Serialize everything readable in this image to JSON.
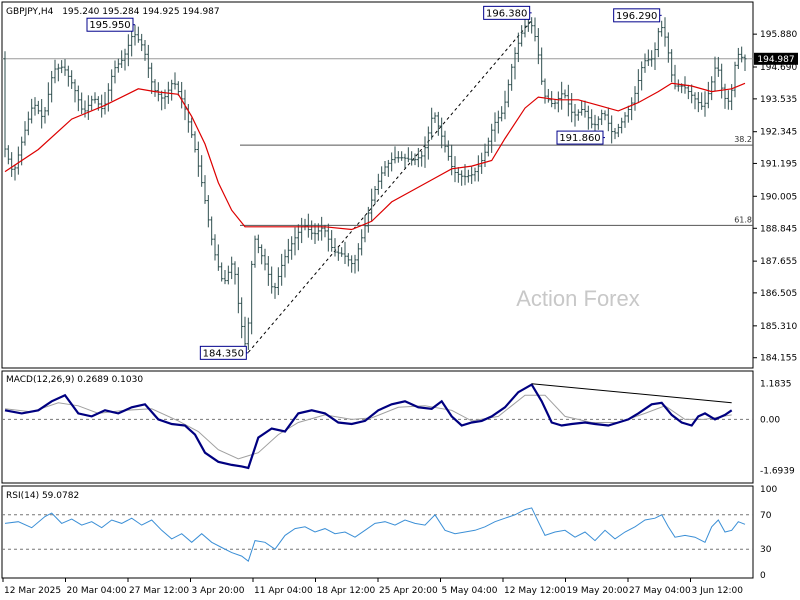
{
  "header": {
    "symbol": "GBPJPY,H4",
    "ohlc": "195.240 195.284 194.925 194.987"
  },
  "watermark": "Action Forex",
  "current_price_label": "194.987",
  "colors": {
    "bar": "#2f4f4f",
    "ma": "#dd0000",
    "macd": "#000080",
    "signal": "#a0a0a0",
    "rsi": "#3b8fd6",
    "annotation_box": "#00008b",
    "grid": "#7f7f7f"
  },
  "chart_data": [
    {
      "type": "ohlc",
      "panel": "price",
      "price_axis_labels": [
        "195.880",
        "194.690",
        "193.535",
        "192.345",
        "191.195",
        "190.005",
        "188.845",
        "187.655",
        "186.505",
        "185.310",
        "184.155"
      ],
      "ylim": [
        184.0,
        196.9
      ],
      "x_labels": [
        "12 Mar 2025",
        "20 Mar 04:00",
        "27 Mar 12:00",
        "3 Apr 20:00",
        "11 Apr 04:00",
        "18 Apr 12:00",
        "25 Apr 20:00",
        "5 May 04:00",
        "12 May 12:00",
        "19 May 20:00",
        "27 May 04:00",
        "3 Jun 12:00"
      ],
      "price_path": [
        [
          0,
          191.9
        ],
        [
          3,
          190.8
        ],
        [
          6,
          192.2
        ],
        [
          9,
          193.4
        ],
        [
          12,
          192.8
        ],
        [
          15,
          194.6
        ],
        [
          18,
          194.7
        ],
        [
          21,
          194.0
        ],
        [
          24,
          193.0
        ],
        [
          27,
          193.6
        ],
        [
          30,
          193.1
        ],
        [
          33,
          194.6
        ],
        [
          36,
          195.0
        ],
        [
          39,
          195.95
        ],
        [
          42,
          195.4
        ],
        [
          45,
          193.9
        ],
        [
          48,
          193.5
        ],
        [
          51,
          194.2
        ],
        [
          54,
          193.4
        ],
        [
          57,
          192.0
        ],
        [
          60,
          190.2
        ],
        [
          63,
          188.1
        ],
        [
          66,
          186.8
        ],
        [
          69,
          187.7
        ],
        [
          71,
          185.6
        ],
        [
          73,
          184.35
        ],
        [
          75,
          188.6
        ],
        [
          77,
          188.0
        ],
        [
          79,
          187.4
        ],
        [
          81,
          186.5
        ],
        [
          84,
          187.7
        ],
        [
          87,
          188.4
        ],
        [
          90,
          189.0
        ],
        [
          93,
          188.6
        ],
        [
          96,
          188.9
        ],
        [
          99,
          188.0
        ],
        [
          102,
          187.9
        ],
        [
          105,
          187.5
        ],
        [
          108,
          188.7
        ],
        [
          111,
          190.1
        ],
        [
          114,
          191.0
        ],
        [
          117,
          191.4
        ],
        [
          120,
          191.4
        ],
        [
          123,
          191.3
        ],
        [
          126,
          191.5
        ],
        [
          129,
          193.1
        ],
        [
          132,
          192.0
        ],
        [
          135,
          190.9
        ],
        [
          138,
          190.7
        ],
        [
          141,
          190.8
        ],
        [
          144,
          191.4
        ],
        [
          147,
          192.6
        ],
        [
          150,
          193.1
        ],
        [
          153,
          195.0
        ],
        [
          156,
          196.1
        ],
        [
          158,
          196.38
        ],
        [
          160,
          195.6
        ],
        [
          162,
          193.7
        ],
        [
          165,
          193.3
        ],
        [
          168,
          193.8
        ],
        [
          171,
          192.9
        ],
        [
          174,
          193.2
        ],
        [
          177,
          192.5
        ],
        [
          180,
          193.1
        ],
        [
          183,
          192.2
        ],
        [
          186,
          192.8
        ],
        [
          189,
          193.5
        ],
        [
          192,
          194.9
        ],
        [
          195,
          195.0
        ],
        [
          197,
          196.29
        ],
        [
          199,
          195.6
        ],
        [
          201,
          194.0
        ],
        [
          204,
          194.0
        ],
        [
          207,
          193.6
        ],
        [
          210,
          193.2
        ],
        [
          212,
          193.9
        ],
        [
          214,
          194.9
        ],
        [
          216,
          193.6
        ],
        [
          218,
          193.4
        ],
        [
          220,
          195.2
        ],
        [
          222,
          194.987
        ]
      ],
      "moving_average_path": [
        [
          0,
          190.9
        ],
        [
          10,
          191.7
        ],
        [
          20,
          192.8
        ],
        [
          30,
          193.3
        ],
        [
          40,
          193.9
        ],
        [
          45,
          193.8
        ],
        [
          52,
          193.7
        ],
        [
          56,
          192.9
        ],
        [
          60,
          191.9
        ],
        [
          64,
          190.5
        ],
        [
          68,
          189.5
        ],
        [
          72,
          188.9
        ],
        [
          78,
          188.9
        ],
        [
          86,
          188.9
        ],
        [
          96,
          188.9
        ],
        [
          104,
          188.8
        ],
        [
          110,
          189.1
        ],
        [
          116,
          189.8
        ],
        [
          122,
          190.2
        ],
        [
          128,
          190.6
        ],
        [
          134,
          191.0
        ],
        [
          140,
          191.1
        ],
        [
          146,
          191.3
        ],
        [
          150,
          192.1
        ],
        [
          156,
          193.2
        ],
        [
          160,
          193.6
        ],
        [
          166,
          193.5
        ],
        [
          172,
          193.5
        ],
        [
          178,
          193.3
        ],
        [
          184,
          193.1
        ],
        [
          190,
          193.4
        ],
        [
          196,
          193.8
        ],
        [
          200,
          194.1
        ],
        [
          206,
          194.0
        ],
        [
          212,
          193.8
        ],
        [
          218,
          193.9
        ],
        [
          222,
          194.1
        ]
      ],
      "annotations": [
        {
          "label": "195.950",
          "bar": 39,
          "price": 195.95,
          "pos": "left"
        },
        {
          "label": "184.350",
          "bar": 73,
          "price": 184.35,
          "pos": "left"
        },
        {
          "label": "196.380",
          "bar": 158,
          "price": 196.38,
          "pos": "left"
        },
        {
          "label": "196.290",
          "bar": 197,
          "price": 196.29,
          "pos": "left"
        },
        {
          "label": "191.860",
          "bar": 180,
          "price": 191.86,
          "pos": "left"
        }
      ],
      "fibonacci": {
        "levels": [
          {
            "label": "38.2",
            "price": 191.86
          },
          {
            "label": "61.8",
            "price": 188.95
          }
        ],
        "swing_low": {
          "bar": 73,
          "price": 184.35
        },
        "swing_high": {
          "bar": 158,
          "price": 196.38
        }
      },
      "horizontal_line": {
        "price": 194.987
      }
    },
    {
      "type": "line",
      "panel": "macd",
      "title": "MACD(12,26,9) 0.2689 0.1030",
      "axis_labels": [
        "1.1835",
        "0.00",
        "-1.6939"
      ],
      "ylim": [
        -2.0,
        1.5
      ],
      "macd_path": [
        [
          0,
          0.3
        ],
        [
          5,
          0.2
        ],
        [
          10,
          0.3
        ],
        [
          14,
          0.6
        ],
        [
          18,
          0.8
        ],
        [
          22,
          0.2
        ],
        [
          26,
          0.1
        ],
        [
          30,
          0.3
        ],
        [
          34,
          0.2
        ],
        [
          38,
          0.4
        ],
        [
          42,
          0.5
        ],
        [
          46,
          0.0
        ],
        [
          50,
          -0.15
        ],
        [
          54,
          -0.2
        ],
        [
          57,
          -0.5
        ],
        [
          60,
          -1.1
        ],
        [
          64,
          -1.4
        ],
        [
          68,
          -1.5
        ],
        [
          71,
          -1.55
        ],
        [
          73,
          -1.6
        ],
        [
          76,
          -0.6
        ],
        [
          80,
          -0.3
        ],
        [
          84,
          -0.4
        ],
        [
          88,
          0.2
        ],
        [
          92,
          0.3
        ],
        [
          96,
          0.2
        ],
        [
          100,
          -0.1
        ],
        [
          104,
          -0.15
        ],
        [
          108,
          -0.05
        ],
        [
          112,
          0.3
        ],
        [
          116,
          0.5
        ],
        [
          120,
          0.6
        ],
        [
          124,
          0.4
        ],
        [
          128,
          0.35
        ],
        [
          131,
          0.6
        ],
        [
          134,
          0.1
        ],
        [
          137,
          -0.2
        ],
        [
          140,
          -0.1
        ],
        [
          143,
          -0.05
        ],
        [
          146,
          0.1
        ],
        [
          150,
          0.4
        ],
        [
          154,
          0.9
        ],
        [
          158,
          1.15
        ],
        [
          161,
          0.6
        ],
        [
          164,
          -0.1
        ],
        [
          167,
          -0.2
        ],
        [
          170,
          -0.15
        ],
        [
          174,
          -0.1
        ],
        [
          177,
          -0.15
        ],
        [
          181,
          -0.2
        ],
        [
          184,
          -0.1
        ],
        [
          187,
          0.0
        ],
        [
          190,
          0.2
        ],
        [
          194,
          0.5
        ],
        [
          197,
          0.55
        ],
        [
          200,
          0.15
        ],
        [
          203,
          -0.1
        ],
        [
          206,
          -0.2
        ],
        [
          208,
          0.1
        ],
        [
          210,
          0.2
        ],
        [
          213,
          0.0
        ],
        [
          216,
          0.15
        ],
        [
          218,
          0.3
        ]
      ],
      "signal_path": [
        [
          0,
          0.35
        ],
        [
          8,
          0.25
        ],
        [
          16,
          0.55
        ],
        [
          22,
          0.45
        ],
        [
          28,
          0.2
        ],
        [
          36,
          0.3
        ],
        [
          44,
          0.35
        ],
        [
          52,
          -0.05
        ],
        [
          58,
          -0.4
        ],
        [
          64,
          -1.0
        ],
        [
          70,
          -1.3
        ],
        [
          76,
          -1.1
        ],
        [
          82,
          -0.5
        ],
        [
          88,
          -0.1
        ],
        [
          96,
          0.15
        ],
        [
          104,
          0.0
        ],
        [
          110,
          0.05
        ],
        [
          118,
          0.4
        ],
        [
          126,
          0.45
        ],
        [
          134,
          0.3
        ],
        [
          140,
          -0.05
        ],
        [
          148,
          0.1
        ],
        [
          156,
          0.8
        ],
        [
          162,
          0.8
        ],
        [
          168,
          0.1
        ],
        [
          176,
          -0.1
        ],
        [
          184,
          -0.1
        ],
        [
          192,
          0.2
        ],
        [
          198,
          0.45
        ],
        [
          204,
          0.0
        ],
        [
          210,
          0.0
        ],
        [
          218,
          0.15
        ]
      ],
      "trendline": {
        "from": {
          "bar": 158,
          "value": 1.18
        },
        "to": {
          "bar": 218,
          "value": 0.55
        }
      }
    },
    {
      "type": "line",
      "panel": "rsi",
      "title": "RSI(14) 59.0782",
      "axis_labels": [
        "100",
        "70",
        "30",
        "0"
      ],
      "ylim": [
        0,
        100
      ],
      "rsi_path": [
        [
          0,
          60
        ],
        [
          4,
          62
        ],
        [
          8,
          55
        ],
        [
          12,
          68
        ],
        [
          14,
          72
        ],
        [
          17,
          60
        ],
        [
          20,
          65
        ],
        [
          23,
          58
        ],
        [
          26,
          62
        ],
        [
          29,
          55
        ],
        [
          32,
          64
        ],
        [
          35,
          60
        ],
        [
          38,
          66
        ],
        [
          41,
          58
        ],
        [
          44,
          64
        ],
        [
          47,
          52
        ],
        [
          50,
          42
        ],
        [
          53,
          48
        ],
        [
          56,
          38
        ],
        [
          59,
          48
        ],
        [
          62,
          38
        ],
        [
          65,
          32
        ],
        [
          68,
          26
        ],
        [
          71,
          22
        ],
        [
          73,
          16
        ],
        [
          75,
          40
        ],
        [
          78,
          38
        ],
        [
          81,
          30
        ],
        [
          84,
          46
        ],
        [
          87,
          54
        ],
        [
          90,
          56
        ],
        [
          93,
          50
        ],
        [
          96,
          54
        ],
        [
          99,
          48
        ],
        [
          102,
          50
        ],
        [
          105,
          44
        ],
        [
          108,
          52
        ],
        [
          111,
          60
        ],
        [
          114,
          62
        ],
        [
          117,
          58
        ],
        [
          120,
          64
        ],
        [
          123,
          60
        ],
        [
          126,
          58
        ],
        [
          129,
          70
        ],
        [
          132,
          52
        ],
        [
          135,
          48
        ],
        [
          138,
          50
        ],
        [
          141,
          52
        ],
        [
          144,
          56
        ],
        [
          147,
          62
        ],
        [
          150,
          66
        ],
        [
          153,
          70
        ],
        [
          156,
          76
        ],
        [
          158,
          78
        ],
        [
          160,
          62
        ],
        [
          162,
          46
        ],
        [
          165,
          50
        ],
        [
          168,
          52
        ],
        [
          171,
          44
        ],
        [
          174,
          50
        ],
        [
          177,
          40
        ],
        [
          180,
          52
        ],
        [
          183,
          42
        ],
        [
          186,
          50
        ],
        [
          189,
          56
        ],
        [
          192,
          64
        ],
        [
          195,
          66
        ],
        [
          197,
          70
        ],
        [
          199,
          56
        ],
        [
          201,
          44
        ],
        [
          204,
          46
        ],
        [
          207,
          44
        ],
        [
          210,
          38
        ],
        [
          212,
          56
        ],
        [
          214,
          64
        ],
        [
          216,
          50
        ],
        [
          218,
          52
        ],
        [
          220,
          62
        ],
        [
          222,
          59
        ]
      ]
    }
  ]
}
